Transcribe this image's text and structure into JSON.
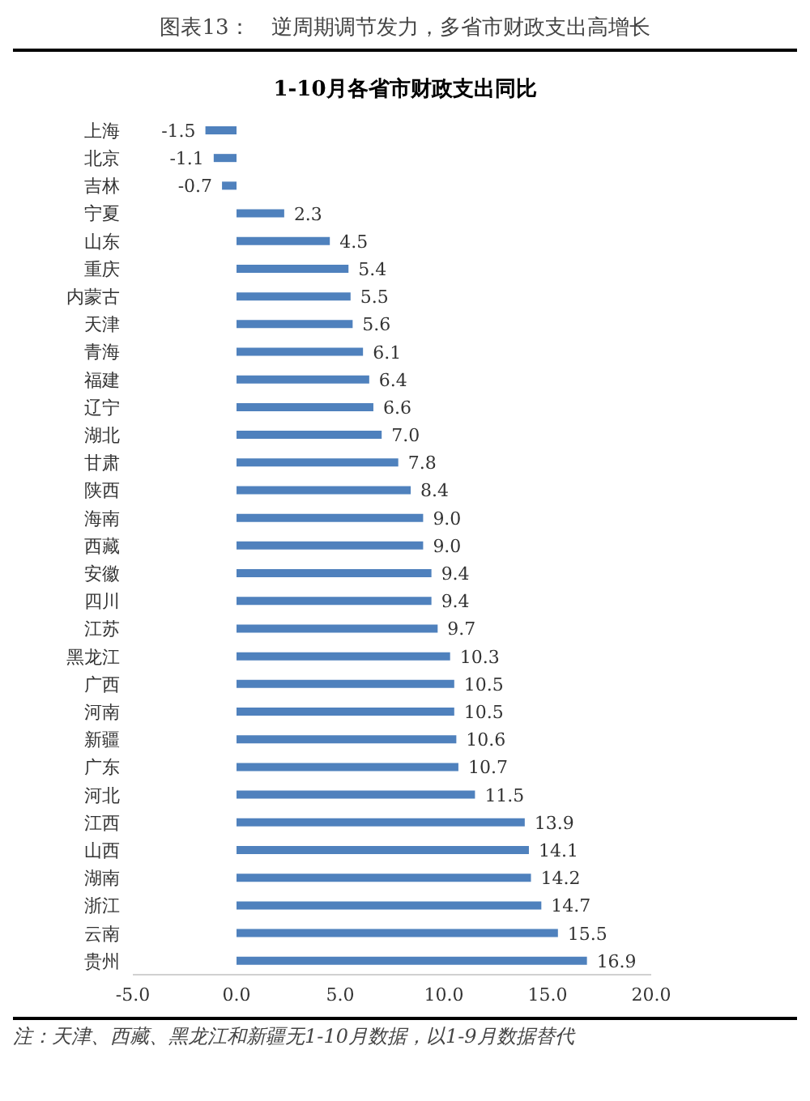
{
  "chart_data": {
    "type": "bar",
    "orientation": "horizontal",
    "title": "图表13：　逆周期调节发力，多省市财政支出高增长",
    "subtitle": "1-10月各省市财政支出同比",
    "categories": [
      "上海",
      "北京",
      "吉林",
      "宁夏",
      "山东",
      "重庆",
      "内蒙古",
      "天津",
      "青海",
      "福建",
      "辽宁",
      "湖北",
      "甘肃",
      "陕西",
      "海南",
      "西藏",
      "安徽",
      "四川",
      "江苏",
      "黑龙江",
      "广西",
      "河南",
      "新疆",
      "广东",
      "河北",
      "江西",
      "山西",
      "湖南",
      "浙江",
      "云南",
      "贵州"
    ],
    "values": [
      -1.5,
      -1.1,
      -0.7,
      2.3,
      4.5,
      5.4,
      5.5,
      5.6,
      6.1,
      6.4,
      6.6,
      7.0,
      7.8,
      8.4,
      9.0,
      9.0,
      9.4,
      9.4,
      9.7,
      10.3,
      10.5,
      10.5,
      10.6,
      10.7,
      11.5,
      13.9,
      14.1,
      14.2,
      14.7,
      15.5,
      16.9
    ],
    "value_labels": [
      "-1.5",
      "-1.1",
      "-0.7",
      "2.3",
      "4.5",
      "5.4",
      "5.5",
      "5.6",
      "6.1",
      "6.4",
      "6.6",
      "7.0",
      "7.8",
      "8.4",
      "9.0",
      "9.0",
      "9.4",
      "9.4",
      "9.7",
      "10.3",
      "10.5",
      "10.5",
      "10.6",
      "10.7",
      "11.5",
      "13.9",
      "14.1",
      "14.2",
      "14.7",
      "15.5",
      "16.9"
    ],
    "color": "#4f81bd",
    "xlim": [
      -5,
      20
    ],
    "xticks": [
      {
        "value": -5,
        "label": "-5.0"
      },
      {
        "value": 0,
        "label": "0.0"
      },
      {
        "value": 5,
        "label": "5.0"
      },
      {
        "value": 10,
        "label": "10.0"
      },
      {
        "value": 15,
        "label": "15.0"
      },
      {
        "value": 20,
        "label": "20.0"
      }
    ],
    "grid": false,
    "legend": false,
    "annotations": [
      "注：天津、西藏、黑龙江和新疆无1-10月数据，以1-9月数据替代"
    ]
  }
}
